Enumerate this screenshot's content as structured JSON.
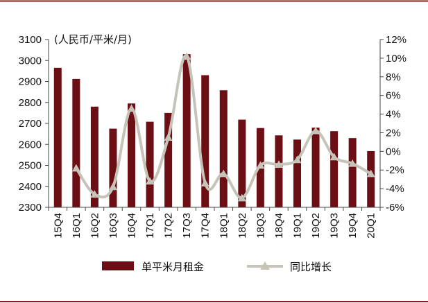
{
  "chart_data": {
    "type": "bar",
    "categories": [
      "15Q4",
      "16Q1",
      "16Q2",
      "16Q3",
      "16Q4",
      "17Q1",
      "17Q2",
      "17Q3",
      "17Q4",
      "18Q1",
      "18Q2",
      "18Q3",
      "18Q4",
      "19Q1",
      "19Q2",
      "19Q3",
      "19Q4",
      "20Q1"
    ],
    "unit_label": "(人民币/平米/月)",
    "series": [
      {
        "name": "单平米月租金",
        "type": "bar",
        "axis": "left",
        "color": "#6b0f14",
        "values": [
          2965,
          2912,
          2780,
          2675,
          2795,
          2708,
          2750,
          3030,
          2930,
          2858,
          2718,
          2678,
          2643,
          2623,
          2680,
          2663,
          2630,
          2568
        ]
      },
      {
        "name": "同比增长",
        "type": "line",
        "axis": "right",
        "color": "#c6c4b8",
        "values": [
          null,
          -1.8,
          -4.6,
          -3.8,
          4.6,
          -3.2,
          1.5,
          10.2,
          -3.4,
          -2.4,
          -5.0,
          -1.5,
          -1.4,
          -0.9,
          2.2,
          -0.6,
          -1.3,
          -2.4
        ]
      }
    ],
    "y_left": {
      "min": 2300,
      "max": 3100,
      "step": 100,
      "ticks": [
        "2300",
        "2400",
        "2500",
        "2600",
        "2700",
        "2800",
        "2900",
        "3000",
        "3100"
      ]
    },
    "y_right": {
      "min": -6,
      "max": 12,
      "step": 2,
      "ticks": [
        "-6%",
        "-4%",
        "-2%",
        "0%",
        "2%",
        "4%",
        "6%",
        "8%",
        "10%",
        "12%"
      ]
    },
    "grid": false,
    "legend_position": "bottom",
    "frame_color": "#8b1a1a"
  }
}
